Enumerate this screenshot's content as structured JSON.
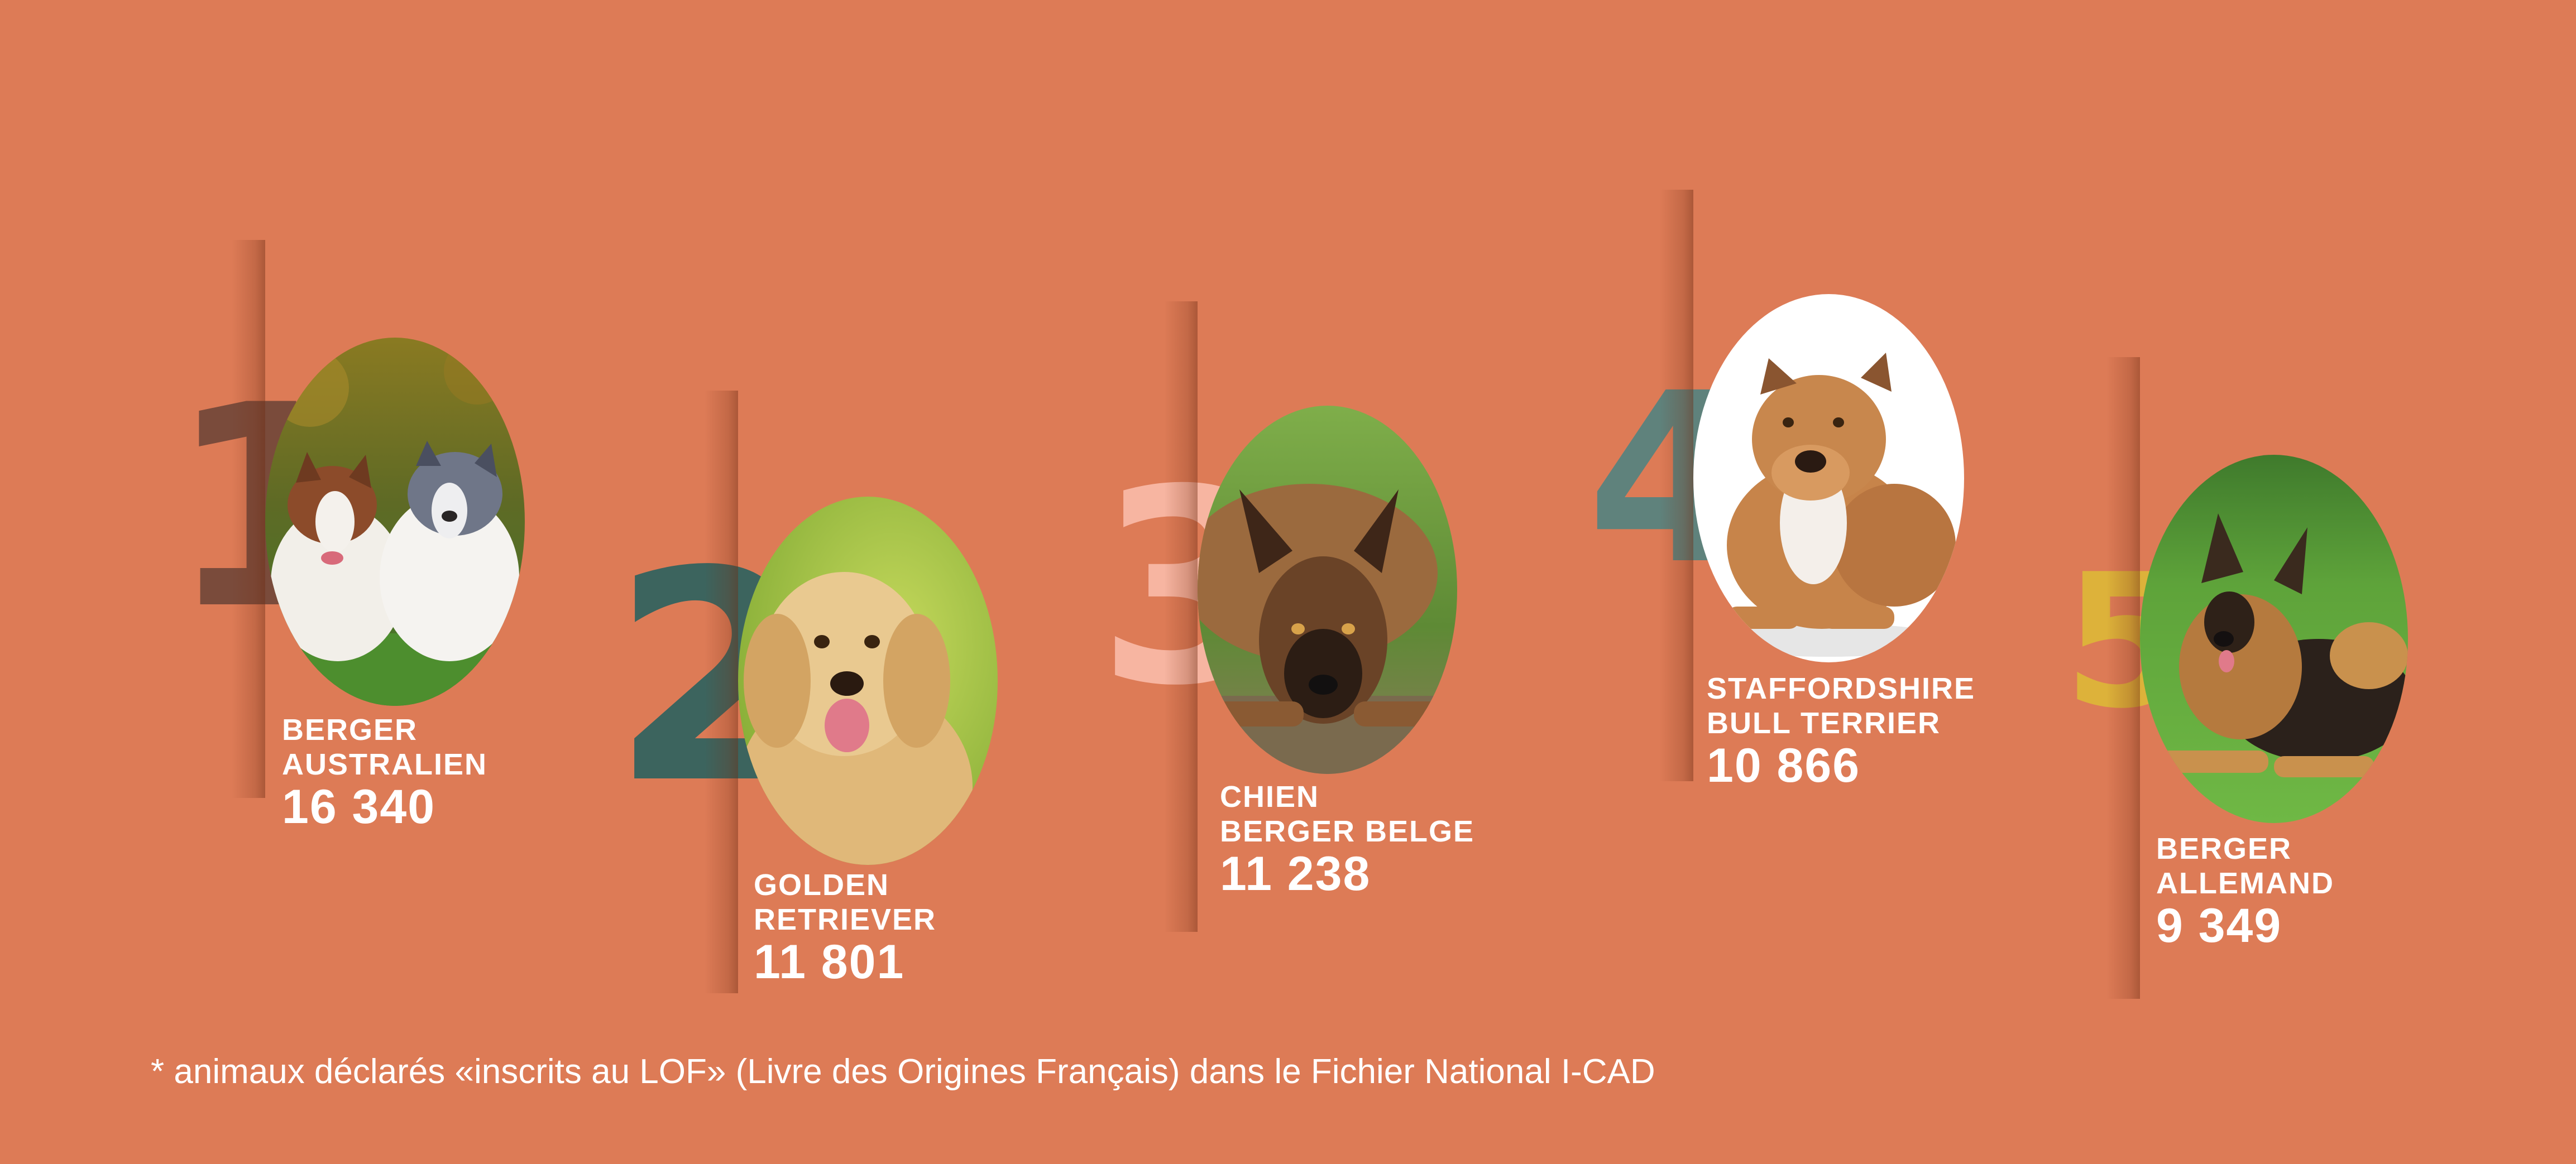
{
  "dogs": [
    {
      "rank": "1",
      "breed_line1": "BERGER",
      "breed_line2": "AUSTRALIEN",
      "count": "16 340",
      "rank_color": "#7a4b3b",
      "photo_icon": "australian-shepherd-photo"
    },
    {
      "rank": "2",
      "breed_line1": "GOLDEN",
      "breed_line2": "RETRIEVER",
      "count": "11 801",
      "rank_color": "#3c645e",
      "photo_icon": "golden-retriever-photo"
    },
    {
      "rank": "3",
      "breed_line1": "CHIEN",
      "breed_line2": "BERGER BELGE",
      "count": "11 238",
      "rank_color": "#f7b5a1",
      "photo_icon": "belgian-malinois-photo"
    },
    {
      "rank": "4",
      "breed_line1": "STAFFORDSHIRE",
      "breed_line2": "BULL TERRIER",
      "count": "10 866",
      "rank_color": "#5f827c",
      "photo_icon": "staffordshire-bull-terrier-photo"
    },
    {
      "rank": "5",
      "breed_line1": "BERGER",
      "breed_line2": "ALLEMAND",
      "count": "9 349",
      "rank_color": "#ddb23a",
      "photo_icon": "german-shepherd-photo"
    }
  ],
  "footnote": "* animaux déclarés «inscrits au LOF» (Livre des Origines Français) dans le Fichier National I-CAD",
  "colors": {
    "background": "#dd7b56",
    "text": "#ffffff"
  }
}
